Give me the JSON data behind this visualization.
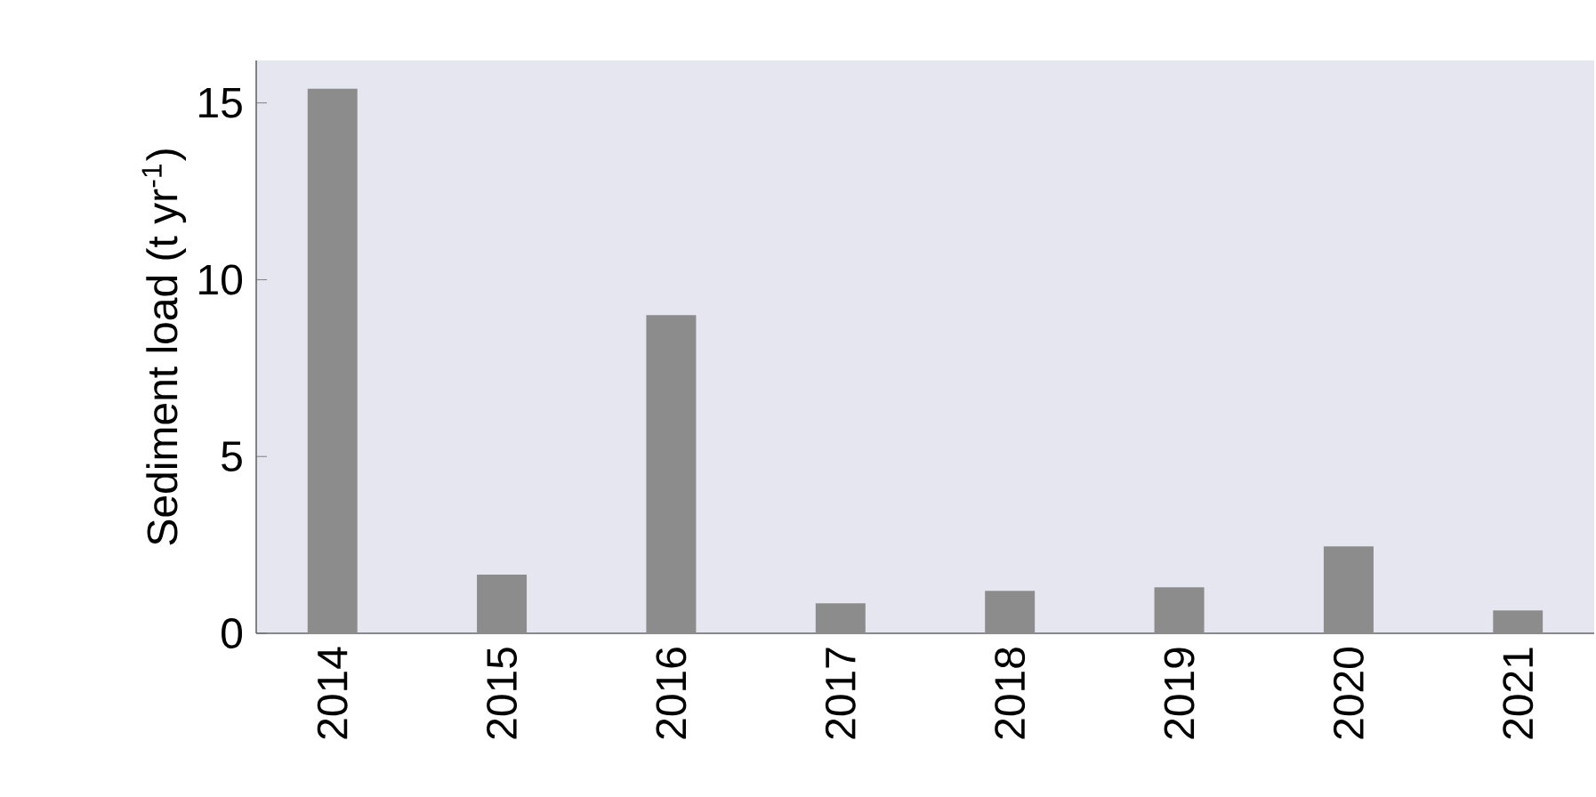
{
  "chart_data": {
    "type": "bar",
    "ylabel": "Sediment load (t yr$^{-1}$)",
    "categories": [
      "2014",
      "2015",
      "2016",
      "2017",
      "2018",
      "2019",
      "2020",
      "2021"
    ],
    "values": [
      15.4,
      1.66,
      9.0,
      0.85,
      1.2,
      1.3,
      2.46,
      0.65
    ],
    "color": "#8c8c8c",
    "ylim": [
      0,
      16.2
    ],
    "yticks": [
      0,
      5,
      10,
      15
    ],
    "grid": false
  }
}
